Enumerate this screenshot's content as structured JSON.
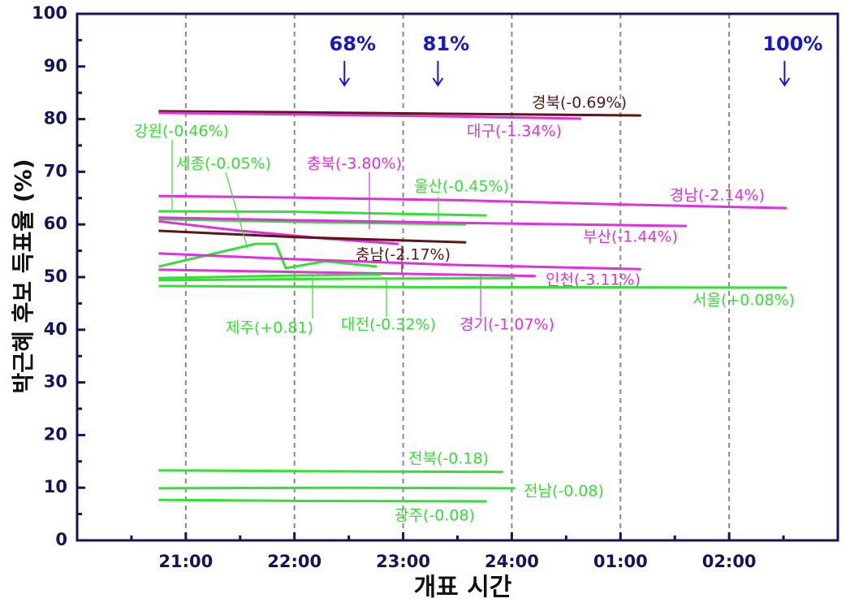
{
  "chart_data": {
    "type": "line",
    "xlabel": "개표 시간",
    "ylabel": "박근혜 후보 득표율 (%)",
    "xlim": [
      20,
      27
    ],
    "ylim": [
      0,
      100
    ],
    "xticks": [
      {
        "value": 21,
        "label": "21:00"
      },
      {
        "value": 22,
        "label": "22:00"
      },
      {
        "value": 23,
        "label": "23:00"
      },
      {
        "value": 24,
        "label": "24:00"
      },
      {
        "value": 25,
        "label": "01:00"
      },
      {
        "value": 26,
        "label": "02:00"
      }
    ],
    "yticks": [
      0,
      10,
      20,
      30,
      40,
      50,
      60,
      70,
      80,
      90,
      100
    ],
    "grid": "x-dashed",
    "annotations": [
      {
        "text": "68%",
        "x": 22.46
      },
      {
        "text": "81%",
        "x": 23.32
      },
      {
        "text": "100%",
        "x": 26.51
      }
    ],
    "series": [
      {
        "name": "경북(-0.69%)",
        "color": "#5c1616",
        "x": [
          20.75,
          22,
          23.5,
          25.19
        ],
        "values": [
          81.5,
          81.3,
          81,
          80.7
        ]
      },
      {
        "name": "대구(-1.34%)",
        "color": "#e030e0",
        "x": [
          20.75,
          22,
          23.5,
          24.64
        ],
        "values": [
          81.2,
          80.9,
          80.5,
          80.1
        ]
      },
      {
        "name": "경남(-2.14%)",
        "color": "#e030e0",
        "x": [
          20.75,
          22,
          23.5,
          25,
          26.53
        ],
        "values": [
          65.4,
          65.1,
          64.6,
          63.8,
          63.1
        ]
      },
      {
        "name": "강원(-0.46%)",
        "color": "#33e033",
        "x": [
          20.75,
          22,
          23.77
        ],
        "values": [
          62.5,
          62.4,
          61.7
        ]
      },
      {
        "name": "울산(-0.45%)",
        "color": "#33e033",
        "x": [
          20.75,
          22,
          23.58
        ],
        "values": [
          61,
          60.5,
          60
        ]
      },
      {
        "name": "부산(-1.44%)",
        "color": "#e030e0",
        "x": [
          20.75,
          22,
          23.5,
          25.61
        ],
        "values": [
          61.3,
          60.8,
          60.3,
          59.7
        ]
      },
      {
        "name": "충북(-3.80%)",
        "color": "#e030e0",
        "x": [
          20.75,
          21.5,
          22.3,
          22.96
        ],
        "values": [
          60.6,
          58.8,
          57.3,
          56.3
        ]
      },
      {
        "name": "충남(-2.17%)",
        "color": "#5c1616",
        "x": [
          20.75,
          22,
          23.58
        ],
        "values": [
          58.8,
          57.6,
          56.6
        ]
      },
      {
        "name": "세종(-0.05%)",
        "color": "#33e033",
        "x": [
          20.75,
          21.64,
          21.83,
          21.92,
          22.28,
          22.76
        ],
        "values": [
          52,
          56.3,
          56.3,
          51.7,
          53,
          52
        ]
      },
      {
        "name": "인천(-3.11%)",
        "color": "#e030e0",
        "x": [
          20.75,
          22,
          23.5,
          25.19
        ],
        "values": [
          54.5,
          53.4,
          52.3,
          51.5
        ]
      },
      {
        "name": "경기(-1.07%)",
        "color": "#e030e0",
        "x": [
          20.75,
          22.5,
          24.22
        ],
        "values": [
          51.4,
          50.8,
          50.2
        ]
      },
      {
        "name": "제주(+0.81)",
        "color": "#33e033",
        "x": [
          20.75,
          22,
          22.8
        ],
        "values": [
          49.8,
          50.3,
          50.5
        ]
      },
      {
        "name": "대전(-0.32%)",
        "color": "#33e033",
        "x": [
          20.75,
          22.5,
          24.03
        ],
        "values": [
          49.4,
          49.7,
          49.8
        ]
      },
      {
        "name": "서울(+0.08%)",
        "color": "#33e033",
        "x": [
          20.75,
          23,
          26.53
        ],
        "values": [
          48.3,
          48.1,
          48
        ]
      },
      {
        "name": "전북(-0.18)",
        "color": "#33e033",
        "x": [
          20.75,
          22.5,
          23.92
        ],
        "values": [
          13.3,
          13.1,
          13
        ]
      },
      {
        "name": "전남(-0.08)",
        "color": "#33e033",
        "x": [
          20.75,
          22.5,
          24.03
        ],
        "values": [
          9.9,
          10,
          9.9
        ]
      },
      {
        "name": "광주(-0.08)",
        "color": "#33e033",
        "x": [
          20.75,
          22,
          23.77
        ],
        "values": [
          7.7,
          7.5,
          7.4
        ]
      }
    ]
  }
}
